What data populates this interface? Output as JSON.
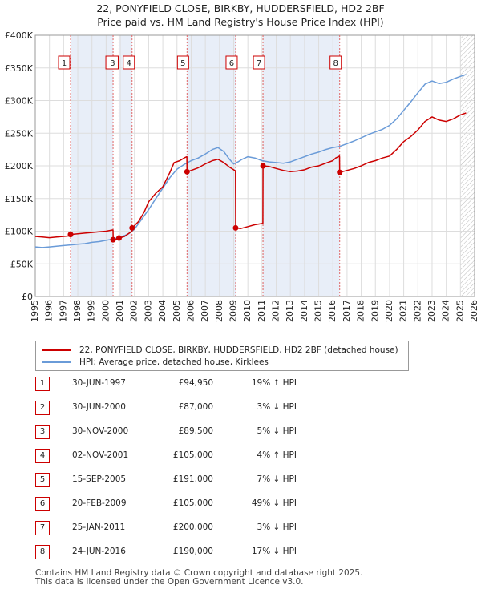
{
  "title_line1": "22, PONYFIELD CLOSE, BIRKBY, HUDDERSFIELD, HD2 2BF",
  "title_line2": "Price paid vs. HM Land Registry's House Price Index (HPI)",
  "chart_data": {
    "type": "line",
    "title": "22, PONYFIELD CLOSE, BIRKBY, HUDDERSFIELD, HD2 2BF — Price paid vs. HM Land Registry's House Price Index (HPI)",
    "xlim": [
      1995,
      2026
    ],
    "ylim": [
      0,
      400000
    ],
    "y_ticks": [
      0,
      50000,
      100000,
      150000,
      200000,
      250000,
      300000,
      350000,
      400000
    ],
    "y_tick_labels": [
      "£0",
      "£50K",
      "£100K",
      "£150K",
      "£200K",
      "£250K",
      "£300K",
      "£350K",
      "£400K"
    ],
    "x_ticks": [
      1995,
      1996,
      1997,
      1998,
      1999,
      2000,
      2001,
      2002,
      2003,
      2004,
      2005,
      2006,
      2007,
      2008,
      2009,
      2010,
      2011,
      2012,
      2013,
      2014,
      2015,
      2016,
      2017,
      2018,
      2019,
      2020,
      2021,
      2022,
      2023,
      2024,
      2025,
      2026
    ],
    "grid": true,
    "legend_position": "below",
    "shaded_ranges": [
      [
        1997.5,
        2000.5
      ],
      [
        2000.92,
        2001.84
      ],
      [
        2005.71,
        2009.14
      ],
      [
        2011.07,
        2016.48
      ]
    ],
    "future_hatch_from": 2025.0,
    "series": [
      {
        "name": "22, PONYFIELD CLOSE, BIRKBY, HUDDERSFIELD, HD2 2BF (detached house)",
        "color": "#cc0000",
        "x": [
          1995,
          1995.5,
          1996,
          1996.5,
          1997,
          1997.49,
          1997.5,
          1998,
          1998.5,
          1999,
          1999.5,
          2000,
          2000.49,
          2000.5,
          2000.91,
          2000.92,
          2001.3,
          2001.83,
          2001.84,
          2002.3,
          2002.7,
          2003,
          2003.5,
          2004,
          2004.5,
          2004.8,
          2005.2,
          2005.5,
          2005.7,
          2005.71,
          2006,
          2006.5,
          2007,
          2007.5,
          2007.9,
          2008.3,
          2008.7,
          2009.0,
          2009.13,
          2009.14,
          2009.5,
          2010,
          2010.5,
          2011.06,
          2011.07,
          2011.5,
          2012,
          2012.5,
          2013,
          2013.5,
          2014,
          2014.5,
          2015,
          2015.5,
          2016,
          2016.2,
          2016.47,
          2016.48,
          2017,
          2017.5,
          2018,
          2018.5,
          2019,
          2019.5,
          2020,
          2020.5,
          2021,
          2021.5,
          2022,
          2022.5,
          2023,
          2023.5,
          2024,
          2024.5,
          2025,
          2025.4
        ],
        "values": [
          92000,
          91000,
          90000,
          91000,
          92000,
          93000,
          94950,
          96000,
          97000,
          98000,
          99000,
          100000,
          102000,
          87000,
          88500,
          89500,
          92000,
          100000,
          105000,
          115000,
          130000,
          145000,
          158000,
          168000,
          190000,
          205000,
          208000,
          212000,
          214000,
          191000,
          193000,
          197000,
          203000,
          208000,
          210000,
          205000,
          198000,
          194000,
          192000,
          105000,
          104000,
          107000,
          110000,
          112000,
          200000,
          199000,
          196000,
          193000,
          191000,
          192000,
          194000,
          198000,
          200000,
          204000,
          208000,
          212000,
          215000,
          190000,
          193000,
          196000,
          200000,
          205000,
          208000,
          212000,
          215000,
          225000,
          237000,
          245000,
          255000,
          268000,
          275000,
          270000,
          268000,
          272000,
          278000,
          281000
        ]
      },
      {
        "name": "HPI: Average price, detached house, Kirklees",
        "color": "#6a9bd8",
        "x": [
          1995,
          1995.5,
          1996,
          1996.5,
          1997,
          1997.5,
          1998,
          1998.5,
          1999,
          1999.5,
          2000,
          2000.5,
          2001,
          2001.5,
          2002,
          2002.5,
          2003,
          2003.5,
          2004,
          2004.5,
          2005,
          2005.5,
          2006,
          2006.5,
          2007,
          2007.5,
          2007.9,
          2008.3,
          2008.7,
          2009,
          2009.3,
          2009.6,
          2010,
          2010.5,
          2011,
          2011.5,
          2012,
          2012.5,
          2013,
          2013.5,
          2014,
          2014.5,
          2015,
          2015.5,
          2016,
          2016.5,
          2017,
          2017.5,
          2018,
          2018.5,
          2019,
          2019.5,
          2020,
          2020.5,
          2021,
          2021.5,
          2022,
          2022.5,
          2023,
          2023.5,
          2024,
          2024.5,
          2025,
          2025.4
        ],
        "values": [
          76000,
          75000,
          76000,
          77000,
          78000,
          79000,
          80000,
          81000,
          83000,
          84000,
          86000,
          88000,
          91000,
          95000,
          103000,
          118000,
          133000,
          150000,
          166000,
          182000,
          195000,
          202000,
          208000,
          212000,
          218000,
          225000,
          228000,
          222000,
          210000,
          203000,
          206000,
          210000,
          214000,
          212000,
          208000,
          206000,
          205000,
          204000,
          206000,
          210000,
          214000,
          218000,
          221000,
          225000,
          228000,
          230000,
          234000,
          238000,
          243000,
          248000,
          252000,
          256000,
          262000,
          272000,
          285000,
          298000,
          312000,
          325000,
          330000,
          326000,
          328000,
          333000,
          337000,
          340000
        ]
      }
    ],
    "sale_points": [
      {
        "label": "1",
        "x": 1997.49,
        "y": 94950
      },
      {
        "label": "2",
        "x": 2000.49,
        "y": 87000
      },
      {
        "label": "3",
        "x": 2000.91,
        "y": 89500
      },
      {
        "label": "4",
        "x": 2001.83,
        "y": 105000
      },
      {
        "label": "5",
        "x": 2005.71,
        "y": 191000
      },
      {
        "label": "6",
        "x": 2009.14,
        "y": 105000
      },
      {
        "label": "7",
        "x": 2011.07,
        "y": 200000
      },
      {
        "label": "8",
        "x": 2016.48,
        "y": 190000
      }
    ]
  },
  "legend": {
    "red_label": "22, PONYFIELD CLOSE, BIRKBY, HUDDERSFIELD, HD2 2BF (detached house)",
    "blue_label": "HPI: Average price, detached house, Kirklees",
    "red_color": "#cc0000",
    "blue_color": "#6a9bd8"
  },
  "sales": [
    {
      "num": "1",
      "date": "30-JUN-1997",
      "price": "£94,950",
      "hpi": "19% ↑ HPI"
    },
    {
      "num": "2",
      "date": "30-JUN-2000",
      "price": "£87,000",
      "hpi": "3% ↓ HPI"
    },
    {
      "num": "3",
      "date": "30-NOV-2000",
      "price": "£89,500",
      "hpi": "5% ↓ HPI"
    },
    {
      "num": "4",
      "date": "02-NOV-2001",
      "price": "£105,000",
      "hpi": "4% ↑ HPI"
    },
    {
      "num": "5",
      "date": "15-SEP-2005",
      "price": "£191,000",
      "hpi": "7% ↓ HPI"
    },
    {
      "num": "6",
      "date": "20-FEB-2009",
      "price": "£105,000",
      "hpi": "49% ↓ HPI"
    },
    {
      "num": "7",
      "date": "25-JAN-2011",
      "price": "£200,000",
      "hpi": "3% ↓ HPI"
    },
    {
      "num": "8",
      "date": "24-JUN-2016",
      "price": "£190,000",
      "hpi": "17% ↓ HPI"
    }
  ],
  "footer_line1": "Contains HM Land Registry data © Crown copyright and database right 2025.",
  "footer_line2": "This data is licensed under the Open Government Licence v3.0."
}
